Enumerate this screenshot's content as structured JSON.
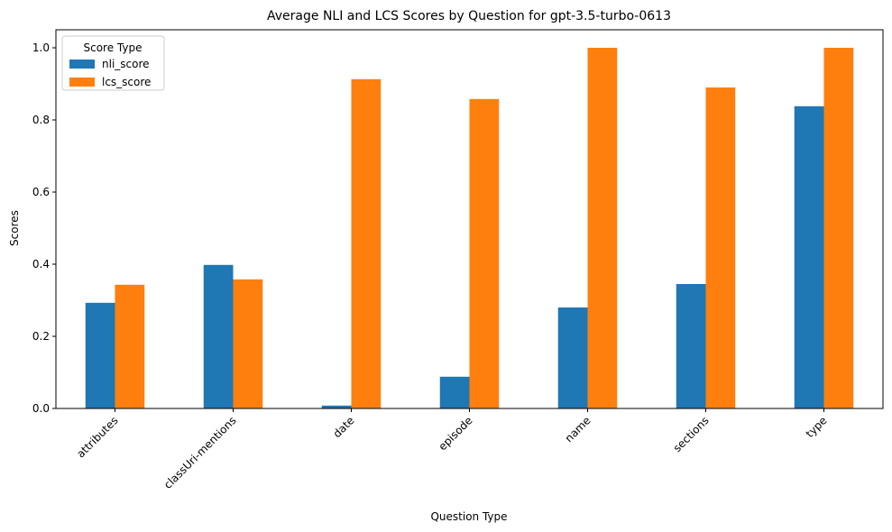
{
  "chart_data": {
    "type": "bar",
    "title": "Average NLI and LCS Scores by Question for gpt-3.5-turbo-0613",
    "xlabel": "Question Type",
    "ylabel": "Scores",
    "categories": [
      "attributes",
      "classUri-mentions",
      "date",
      "episode",
      "name",
      "sections",
      "type"
    ],
    "series": [
      {
        "name": "nli_score",
        "color": "#1f77b4",
        "values": [
          0.293,
          0.398,
          0.008,
          0.088,
          0.28,
          0.345,
          0.838
        ]
      },
      {
        "name": "lcs_score",
        "color": "#ff7f0e",
        "values": [
          0.343,
          0.358,
          0.913,
          0.858,
          1.0,
          0.89,
          1.0
        ]
      }
    ],
    "ylim": [
      0,
      1.05
    ],
    "yticks": [
      0.0,
      0.2,
      0.4,
      0.6,
      0.8,
      1.0
    ],
    "ytick_labels": [
      "0.0",
      "0.2",
      "0.4",
      "0.6",
      "0.8",
      "1.0"
    ],
    "legend": {
      "title": "Score Type",
      "placement": "top-left"
    },
    "grid": false
  }
}
